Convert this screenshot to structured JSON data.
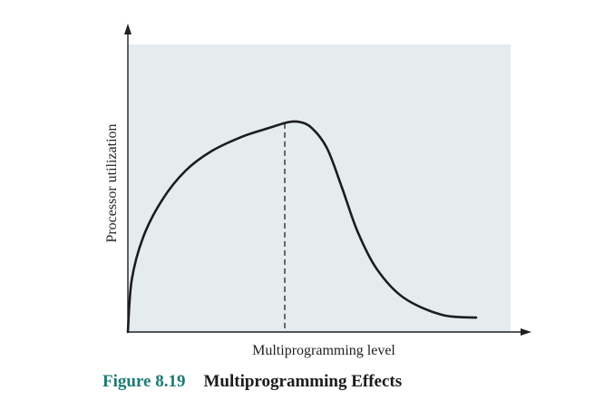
{
  "chart_data": {
    "type": "line",
    "title": "",
    "xlabel": "Multiprogramming level",
    "ylabel": "Processor utilization",
    "xlim": [
      0,
      1
    ],
    "ylim": [
      0,
      1
    ],
    "grid": false,
    "x_ticks": "none",
    "y_ticks": "none",
    "series": [
      {
        "x": [
          0,
          0.01,
          0.04,
          0.09,
          0.15,
          0.22,
          0.3,
          0.37,
          0.42,
          0.45,
          0.48,
          0.52,
          0.56,
          0.6,
          0.65,
          0.72,
          0.82,
          0.91
        ],
        "y": [
          0,
          0.18,
          0.33,
          0.46,
          0.56,
          0.63,
          0.68,
          0.71,
          0.73,
          0.73,
          0.71,
          0.64,
          0.5,
          0.35,
          0.22,
          0.12,
          0.06,
          0.05
        ],
        "color": "#1c1c1c"
      }
    ],
    "reference_lines": [
      {
        "orientation": "vertical",
        "x": 0.41,
        "style": "dashed",
        "note_in_picture": "marks x of peak"
      }
    ],
    "plot_background": "#e4ecee",
    "axis_color": "#231f20"
  },
  "caption": {
    "number": "Figure 8.19",
    "title": "Multiprogramming Effects"
  }
}
